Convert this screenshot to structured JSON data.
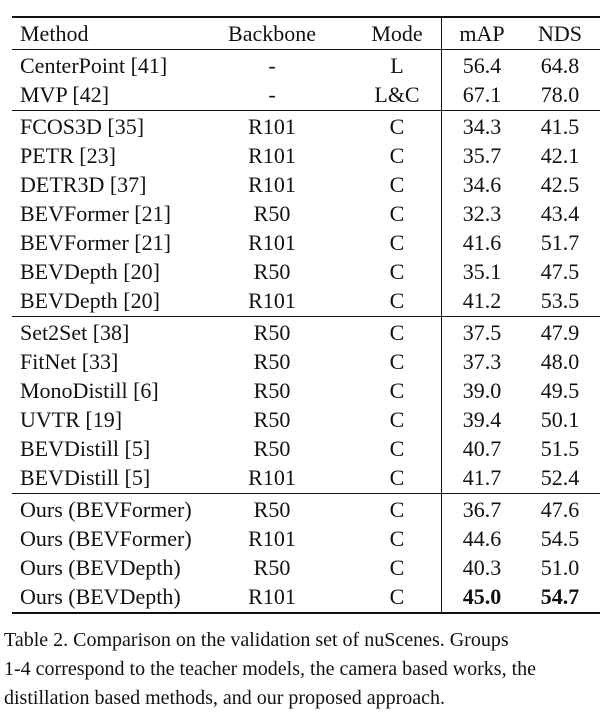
{
  "table": {
    "headers": [
      "Method",
      "Backbone",
      "Mode",
      "mAP",
      "NDS"
    ],
    "groups": [
      [
        [
          "CenterPoint [41]",
          "-",
          "L",
          "56.4",
          "64.8"
        ],
        [
          "MVP [42]",
          "-",
          "L&C",
          "67.1",
          "78.0"
        ]
      ],
      [
        [
          "FCOS3D [35]",
          "R101",
          "C",
          "34.3",
          "41.5"
        ],
        [
          "PETR [23]",
          "R101",
          "C",
          "35.7",
          "42.1"
        ],
        [
          "DETR3D [37]",
          "R101",
          "C",
          "34.6",
          "42.5"
        ],
        [
          "BEVFormer [21]",
          "R50",
          "C",
          "32.3",
          "43.4"
        ],
        [
          "BEVFormer [21]",
          "R101",
          "C",
          "41.6",
          "51.7"
        ],
        [
          "BEVDepth [20]",
          "R50",
          "C",
          "35.1",
          "47.5"
        ],
        [
          "BEVDepth [20]",
          "R101",
          "C",
          "41.2",
          "53.5"
        ]
      ],
      [
        [
          "Set2Set [38]",
          "R50",
          "C",
          "37.5",
          "47.9"
        ],
        [
          "FitNet [33]",
          "R50",
          "C",
          "37.3",
          "48.0"
        ],
        [
          "MonoDistill [6]",
          "R50",
          "C",
          "39.0",
          "49.5"
        ],
        [
          "UVTR [19]",
          "R50",
          "C",
          "39.4",
          "50.1"
        ],
        [
          "BEVDistill [5]",
          "R50",
          "C",
          "40.7",
          "51.5"
        ],
        [
          "BEVDistill [5]",
          "R101",
          "C",
          "41.7",
          "52.4"
        ]
      ],
      [
        [
          "Ours (BEVFormer)",
          "R50",
          "C",
          "36.7",
          "47.6"
        ],
        [
          "Ours (BEVFormer)",
          "R101",
          "C",
          "44.6",
          "54.5"
        ],
        [
          "Ours (BEVDepth)",
          "R50",
          "C",
          "40.3",
          "51.0"
        ],
        [
          "Ours (BEVDepth)",
          "R101",
          "C",
          "45.0",
          "54.7"
        ]
      ]
    ],
    "bold_cells": [
      [
        3,
        3,
        3
      ],
      [
        3,
        3,
        4
      ]
    ]
  },
  "caption": {
    "lines": [
      "Table 2. Comparison on the validation set of nuScenes.  Groups",
      "1-4 correspond to the teacher models, the camera based works, the",
      "distillation based methods, and our proposed approach."
    ]
  }
}
